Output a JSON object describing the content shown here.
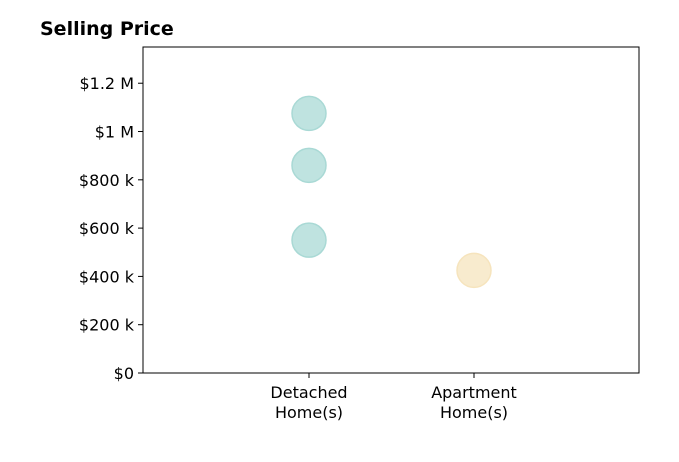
{
  "chart_data": {
    "type": "scatter",
    "title": "Selling Price",
    "xlabel": "",
    "ylabel": "",
    "categories": [
      [
        "Detached",
        "Home(s)"
      ],
      [
        "Apartment",
        "Home(s)"
      ]
    ],
    "ylim": [
      0,
      1350000
    ],
    "yticks": [
      {
        "value": 0,
        "label": "$0"
      },
      {
        "value": 200000,
        "label": "$200 k"
      },
      {
        "value": 400000,
        "label": "$400 k"
      },
      {
        "value": 600000,
        "label": "$600 k"
      },
      {
        "value": 800000,
        "label": "$800 k"
      },
      {
        "value": 1000000,
        "label": "$1 M"
      },
      {
        "value": 1200000,
        "label": "$1.2 M"
      }
    ],
    "grid": false,
    "points": [
      {
        "category": 0,
        "value": 1075000,
        "color": "#a9d9d5"
      },
      {
        "category": 0,
        "value": 860000,
        "color": "#a9d9d5"
      },
      {
        "category": 0,
        "value": 550000,
        "color": "#a9d9d5"
      },
      {
        "category": 1,
        "value": 425000,
        "color": "#f6e4bd"
      }
    ],
    "colors": {
      "detached": "#a9d9d5",
      "apartment": "#f6e4bd"
    }
  }
}
